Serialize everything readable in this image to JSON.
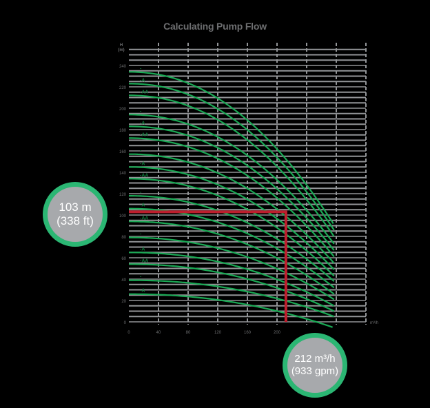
{
  "chart_data": {
    "type": "line",
    "title": "Calculating Pump Flow",
    "xlabel": "m³/h",
    "ylabel": "H (m)",
    "xlim": [
      0,
      320
    ],
    "ylim": [
      0,
      240
    ],
    "x_ticks": [
      0,
      40,
      80,
      120,
      160,
      200
    ],
    "x_tick_labels": [
      "0",
      "40",
      "80",
      "120",
      "160",
      "200"
    ],
    "y_ticks": [
      0,
      20,
      40,
      60,
      80,
      100,
      120,
      140,
      160,
      180,
      200,
      220,
      240
    ],
    "y_tick_labels": [
      "0",
      "20",
      "40",
      "60",
      "80",
      "100",
      "120",
      "140",
      "160",
      "180",
      "200",
      "220",
      "240"
    ],
    "grid": true,
    "series": [
      {
        "name": "-",
        "shutoff_head": 234,
        "end_flow": 276,
        "end_head": 92
      },
      {
        "name": "-A",
        "shutoff_head": 223,
        "end_flow": 277,
        "end_head": 86
      },
      {
        "name": "-AA",
        "shutoff_head": 212,
        "end_flow": 277,
        "end_head": 80
      },
      {
        "name": "-",
        "shutoff_head": 194,
        "end_flow": 277,
        "end_head": 73
      },
      {
        "name": "-A",
        "shutoff_head": 183,
        "end_flow": 277,
        "end_head": 67
      },
      {
        "name": "-AA",
        "shutoff_head": 172,
        "end_flow": 277,
        "end_head": 61
      },
      {
        "name": "-",
        "shutoff_head": 157,
        "end_flow": 277,
        "end_head": 55
      },
      {
        "name": "-A",
        "shutoff_head": 145,
        "end_flow": 277,
        "end_head": 49
      },
      {
        "name": "-AA",
        "shutoff_head": 134,
        "end_flow": 277,
        "end_head": 43
      },
      {
        "name": "-",
        "shutoff_head": 118,
        "end_flow": 277,
        "end_head": 38
      },
      {
        "name": "-A",
        "shutoff_head": 106,
        "end_flow": 277,
        "end_head": 32
      },
      {
        "name": "-AA",
        "shutoff_head": 94,
        "end_flow": 277,
        "end_head": 26
      },
      {
        "name": "-",
        "shutoff_head": 79,
        "end_flow": 277,
        "end_head": 21
      },
      {
        "name": "-A",
        "shutoff_head": 65,
        "end_flow": 277,
        "end_head": 15
      },
      {
        "name": "-AA",
        "shutoff_head": 54,
        "end_flow": 277,
        "end_head": 10
      },
      {
        "name": "-",
        "shutoff_head": 39,
        "end_flow": 277,
        "end_head": 5
      },
      {
        "name": "-A",
        "shutoff_head": 26,
        "end_flow": 275,
        "end_head": -5
      }
    ],
    "operating_point": {
      "flow": 212,
      "head": 103
    },
    "annotations": [
      {
        "text": "103 m (338 ft)",
        "target": "head"
      },
      {
        "text": "212 m³/h (933 gpm)",
        "target": "flow"
      }
    ],
    "colors": {
      "curve": "#1aaa55",
      "operating_line": "#be1e2d",
      "grid": "#939598",
      "text": "#6d6e70",
      "bubble_fill": "#a7a9ac",
      "bubble_ring": "#2bb673"
    }
  },
  "annotations": {
    "head_line1": "103 m",
    "head_line2": "(338 ft)",
    "flow_line1": "212 m³/h",
    "flow_line2": "(933 gpm)"
  },
  "axis": {
    "y_unit_top": "H",
    "y_unit_bottom": "(m)",
    "x_unit": "m³/h"
  }
}
